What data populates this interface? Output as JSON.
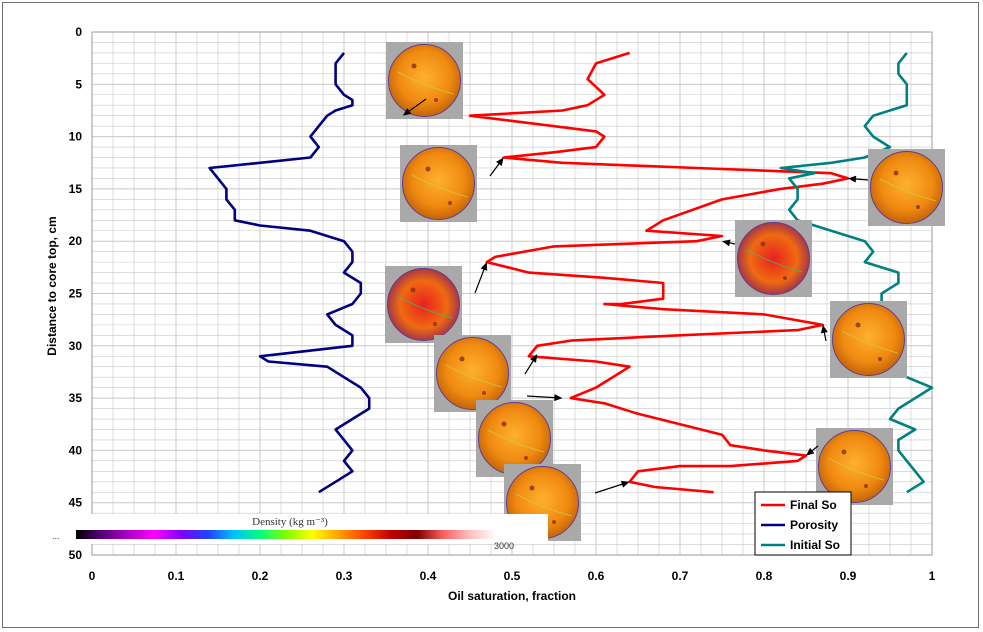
{
  "chart_data": {
    "type": "line",
    "xlabel": "Oil saturation, fraction",
    "ylabel": "Distance to core top, cm",
    "xlim": [
      0,
      1
    ],
    "ylim": [
      0,
      50
    ],
    "y_reversed": true,
    "x_ticks": [
      "0",
      "0.1",
      "0.2",
      "0.3",
      "0.4",
      "0.5",
      "0.6",
      "0.7",
      "0.8",
      "0.9",
      "1"
    ],
    "y_ticks": [
      "0",
      "5",
      "10",
      "15",
      "20",
      "25",
      "30",
      "35",
      "40",
      "45",
      "50"
    ],
    "grid": true,
    "legend_position": "bottom-right",
    "series": [
      {
        "name": "Final So",
        "color": "#ff0000",
        "points": [
          [
            0.64,
            2
          ],
          [
            0.6,
            3
          ],
          [
            0.59,
            4.5
          ],
          [
            0.61,
            6
          ],
          [
            0.59,
            7
          ],
          [
            0.56,
            7.5
          ],
          [
            0.45,
            8
          ],
          [
            0.5,
            8.5
          ],
          [
            0.6,
            9.5
          ],
          [
            0.61,
            10
          ],
          [
            0.6,
            11
          ],
          [
            0.55,
            11.5
          ],
          [
            0.49,
            12
          ],
          [
            0.56,
            12.5
          ],
          [
            0.72,
            13
          ],
          [
            0.88,
            13.5
          ],
          [
            0.9,
            14
          ],
          [
            0.87,
            14.5
          ],
          [
            0.82,
            15
          ],
          [
            0.75,
            16
          ],
          [
            0.68,
            18
          ],
          [
            0.66,
            19
          ],
          [
            0.75,
            19.5
          ],
          [
            0.72,
            20
          ],
          [
            0.55,
            20.5
          ],
          [
            0.48,
            21.5
          ],
          [
            0.47,
            22
          ],
          [
            0.52,
            23
          ],
          [
            0.61,
            23.5
          ],
          [
            0.68,
            24
          ],
          [
            0.68,
            25.5
          ],
          [
            0.63,
            26
          ],
          [
            0.61,
            26
          ],
          [
            0.68,
            26.5
          ],
          [
            0.8,
            27
          ],
          [
            0.87,
            28
          ],
          [
            0.84,
            28.5
          ],
          [
            0.7,
            29
          ],
          [
            0.57,
            29.5
          ],
          [
            0.53,
            30
          ],
          [
            0.52,
            31
          ],
          [
            0.6,
            31.5
          ],
          [
            0.64,
            32
          ],
          [
            0.62,
            33
          ],
          [
            0.61,
            33.5
          ],
          [
            0.6,
            34
          ],
          [
            0.57,
            35
          ],
          [
            0.61,
            35.5
          ],
          [
            0.65,
            36.5
          ],
          [
            0.7,
            37.5
          ],
          [
            0.75,
            38.5
          ],
          [
            0.76,
            39.5
          ],
          [
            0.8,
            40
          ],
          [
            0.85,
            40.5
          ],
          [
            0.84,
            41
          ],
          [
            0.76,
            41.5
          ],
          [
            0.7,
            41.5
          ],
          [
            0.65,
            42
          ],
          [
            0.64,
            43
          ],
          [
            0.67,
            43.5
          ],
          [
            0.74,
            44
          ]
        ]
      },
      {
        "name": "Porosity",
        "color": "#000080",
        "points": [
          [
            0.3,
            2
          ],
          [
            0.29,
            3
          ],
          [
            0.29,
            5
          ],
          [
            0.3,
            6
          ],
          [
            0.31,
            6.5
          ],
          [
            0.31,
            7
          ],
          [
            0.29,
            7.5
          ],
          [
            0.28,
            8
          ],
          [
            0.27,
            9
          ],
          [
            0.26,
            10
          ],
          [
            0.27,
            11
          ],
          [
            0.26,
            12
          ],
          [
            0.2,
            12.5
          ],
          [
            0.14,
            13
          ],
          [
            0.15,
            14
          ],
          [
            0.16,
            15
          ],
          [
            0.16,
            16
          ],
          [
            0.17,
            17
          ],
          [
            0.17,
            18
          ],
          [
            0.2,
            18.5
          ],
          [
            0.26,
            19
          ],
          [
            0.3,
            20
          ],
          [
            0.31,
            21
          ],
          [
            0.31,
            22
          ],
          [
            0.3,
            23
          ],
          [
            0.32,
            24
          ],
          [
            0.32,
            25
          ],
          [
            0.31,
            26
          ],
          [
            0.28,
            27
          ],
          [
            0.29,
            28
          ],
          [
            0.31,
            29
          ],
          [
            0.31,
            30
          ],
          [
            0.2,
            31
          ],
          [
            0.21,
            31.5
          ],
          [
            0.28,
            32
          ],
          [
            0.3,
            33
          ],
          [
            0.32,
            34
          ],
          [
            0.33,
            35
          ],
          [
            0.33,
            36
          ],
          [
            0.31,
            37
          ],
          [
            0.29,
            38
          ],
          [
            0.3,
            39
          ],
          [
            0.31,
            40
          ],
          [
            0.3,
            41
          ],
          [
            0.31,
            42
          ],
          [
            0.29,
            43
          ],
          [
            0.27,
            44
          ]
        ]
      },
      {
        "name": "Initial So",
        "color": "#008080",
        "points": [
          [
            0.97,
            2
          ],
          [
            0.96,
            3
          ],
          [
            0.96,
            4
          ],
          [
            0.97,
            5
          ],
          [
            0.97,
            6
          ],
          [
            0.97,
            7
          ],
          [
            0.93,
            8
          ],
          [
            0.92,
            9
          ],
          [
            0.93,
            10
          ],
          [
            0.95,
            11
          ],
          [
            0.92,
            12
          ],
          [
            0.88,
            12.5
          ],
          [
            0.82,
            13
          ],
          [
            0.86,
            13.5
          ],
          [
            0.83,
            14
          ],
          [
            0.84,
            15
          ],
          [
            0.84,
            16
          ],
          [
            0.83,
            17
          ],
          [
            0.84,
            18
          ],
          [
            0.88,
            19
          ],
          [
            0.92,
            20
          ],
          [
            0.93,
            21
          ],
          [
            0.92,
            22
          ],
          [
            0.96,
            23
          ],
          [
            0.96,
            24
          ],
          [
            0.94,
            25
          ],
          [
            0.94,
            26
          ],
          [
            0.91,
            27
          ],
          [
            0.89,
            28
          ],
          [
            0.89,
            29
          ],
          [
            0.89,
            30
          ],
          [
            0.9,
            31
          ],
          [
            0.93,
            32
          ],
          [
            0.97,
            33
          ],
          [
            1.0,
            34
          ],
          [
            0.98,
            35
          ],
          [
            0.96,
            36
          ],
          [
            0.95,
            37
          ],
          [
            0.98,
            38
          ],
          [
            0.96,
            39
          ],
          [
            0.96,
            40
          ],
          [
            0.97,
            41
          ],
          [
            0.98,
            42
          ],
          [
            0.99,
            43
          ],
          [
            0.97,
            44
          ]
        ]
      }
    ],
    "colorbar": {
      "title": "Density (kg m⁻³)",
      "end_label": "3000",
      "start_label": "...",
      "colors": [
        "#000000",
        "#5a007a",
        "#b000c8",
        "#ff00ff",
        "#8000ff",
        "#2040ff",
        "#00c0ff",
        "#00ff80",
        "#80ff00",
        "#ffff00",
        "#ffa000",
        "#ff4000",
        "#c00000",
        "#800000",
        "#ff6060",
        "#ffc0c0",
        "#ffffff"
      ]
    },
    "core_images": [
      {
        "target": [
          0.37,
          8.0
        ],
        "style": "orange"
      },
      {
        "target": [
          0.49,
          12.0
        ],
        "style": "orange"
      },
      {
        "target": [
          0.9,
          14.0
        ],
        "style": "orange"
      },
      {
        "target": [
          0.75,
          20.0
        ],
        "style": "red"
      },
      {
        "target": [
          0.47,
          22.0
        ],
        "style": "red"
      },
      {
        "target": [
          0.87,
          28.0
        ],
        "style": "orange"
      },
      {
        "target": [
          0.53,
          30.8
        ],
        "style": "orange"
      },
      {
        "target": [
          0.56,
          35.0
        ],
        "style": "orange"
      },
      {
        "target": [
          0.85,
          40.5
        ],
        "style": "orange"
      },
      {
        "target": [
          0.64,
          43.0
        ],
        "style": "orange"
      }
    ]
  }
}
